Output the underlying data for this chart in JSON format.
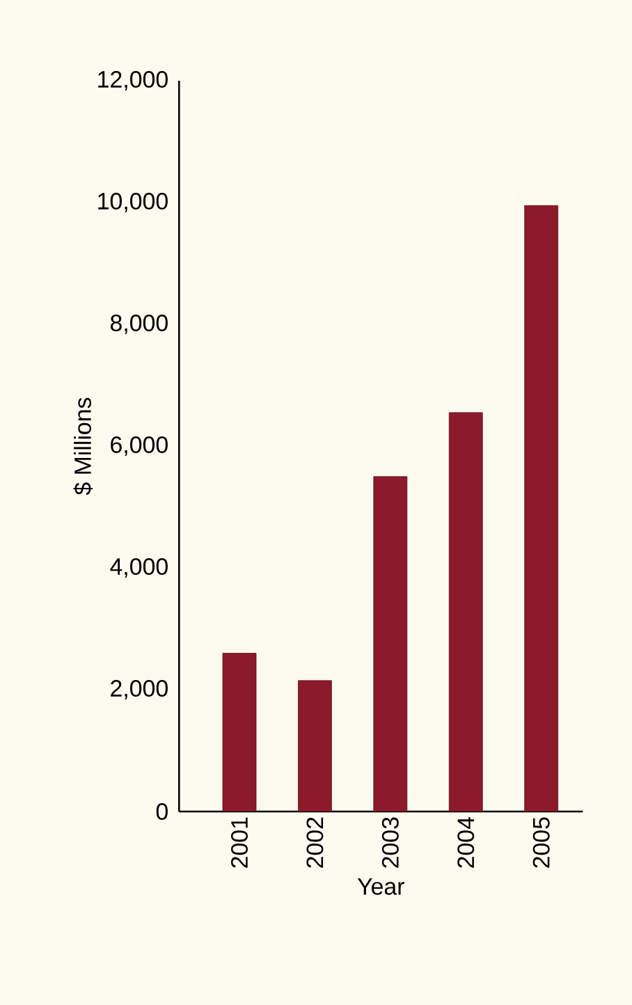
{
  "chart_data": {
    "type": "bar",
    "xlabel": "Year",
    "ylabel": "$ Millions",
    "categories": [
      "2001",
      "2002",
      "2003",
      "2004",
      "2005"
    ],
    "values": [
      2600,
      2150,
      5500,
      6550,
      9950
    ],
    "color": "#8b1a2a",
    "ylim": [
      0,
      12000
    ],
    "yticks": [
      {
        "value": 0,
        "label": "0"
      },
      {
        "value": 2000,
        "label": "2,000"
      },
      {
        "value": 4000,
        "label": "4,000"
      },
      {
        "value": 6000,
        "label": "6,000"
      },
      {
        "value": 8000,
        "label": "8,000"
      },
      {
        "value": 10000,
        "label": "10,000"
      },
      {
        "value": 12000,
        "label": "12,000"
      }
    ],
    "grid": false
  }
}
